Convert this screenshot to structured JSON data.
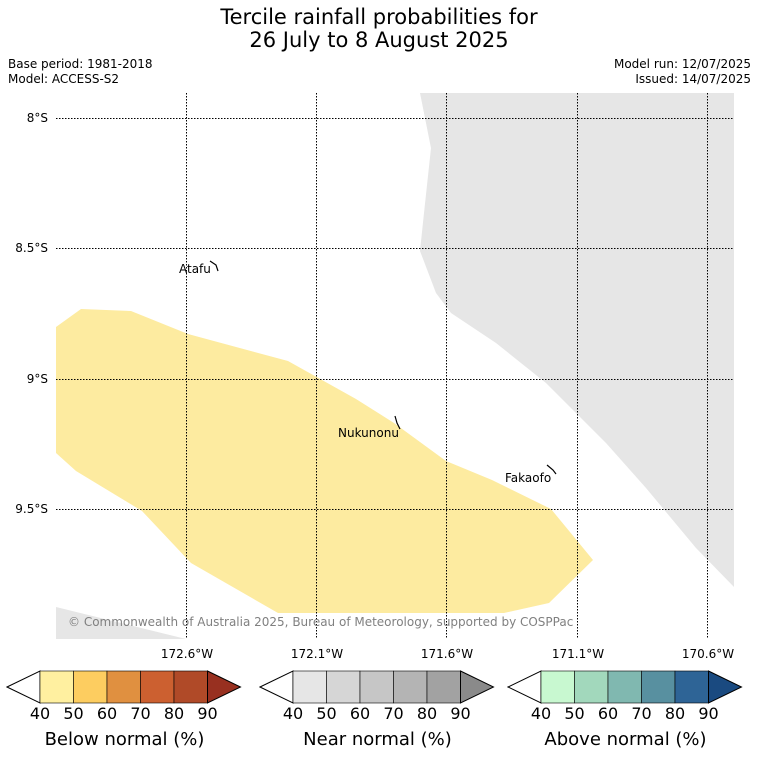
{
  "title": {
    "line1": "Tercile rainfall probabilities for",
    "line2": "26 July to 8 August 2025"
  },
  "meta": {
    "base_period": "Base period: 1981-2018",
    "model": "Model: ACCESS-S2",
    "model_run": "Model run: 12/07/2025",
    "issued": "Issued: 14/07/2025"
  },
  "map": {
    "lat_labels": [
      "8°S",
      "8.5°S",
      "9°S",
      "9.5°S"
    ],
    "lon_labels": [
      "172.6°W",
      "172.1°W",
      "171.6°W",
      "171.1°W",
      "170.6°W"
    ],
    "places": [
      "Atafu",
      "Nukunonu",
      "Fakaofo"
    ],
    "copyright": "© Commonwealth of Australia 2025, Bureau of Meteorology, supported by COSPPac",
    "colors": {
      "below_40_50": "#fdeba0",
      "outside_region": "#e6e6e6"
    }
  },
  "colorbars": [
    {
      "label": "Below normal (%)",
      "ticks": [
        "40",
        "50",
        "60",
        "70",
        "80",
        "90"
      ],
      "colors": [
        "#fff0a0",
        "#fdcd60",
        "#e09040",
        "#cc6030",
        "#b04a28",
        "#983020"
      ]
    },
    {
      "label": "Near normal (%)",
      "ticks": [
        "40",
        "50",
        "60",
        "70",
        "80",
        "90"
      ],
      "colors": [
        "#e6e6e6",
        "#d6d6d6",
        "#c6c6c6",
        "#b4b4b4",
        "#a2a2a2",
        "#8a8a8a"
      ]
    },
    {
      "label": "Above normal (%)",
      "ticks": [
        "40",
        "50",
        "60",
        "70",
        "80",
        "90"
      ],
      "colors": [
        "#c8f8d0",
        "#a2d8bc",
        "#80b8b0",
        "#5890a0",
        "#2e6496",
        "#1a4a80"
      ]
    }
  ]
}
